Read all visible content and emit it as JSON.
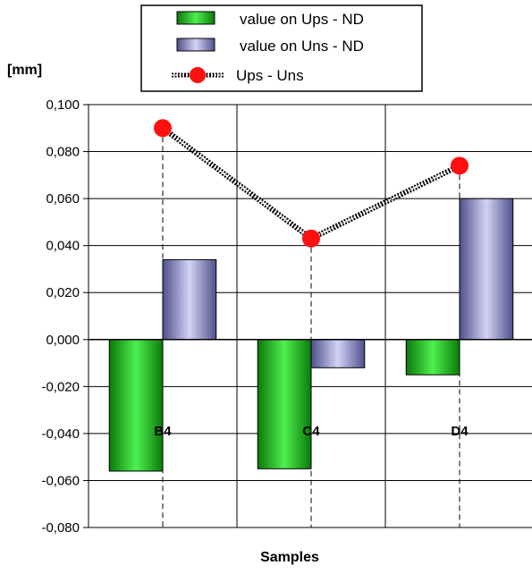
{
  "chart_data": {
    "type": "bar",
    "categories": [
      "B4",
      "C4",
      "D4"
    ],
    "series": [
      {
        "name": "value on Ups - ND",
        "kind": "bar",
        "color": "#22c522",
        "values": [
          -0.056,
          -0.055,
          -0.015
        ]
      },
      {
        "name": "value on Uns - ND",
        "kind": "bar",
        "color": "#8c8cd8",
        "values": [
          0.034,
          -0.012,
          0.06
        ]
      },
      {
        "name": "Ups - Uns",
        "kind": "line",
        "color": "#ff1010",
        "values": [
          0.09,
          0.043,
          0.074
        ]
      }
    ],
    "ylabel": "[mm]",
    "xlabel": "Samples",
    "ylim": [
      -0.08,
      0.1
    ],
    "yticks": [
      "-0,080",
      "-0,060",
      "-0,040",
      "-0,020",
      "0,000",
      "0,020",
      "0,040",
      "0,060",
      "0,080",
      "0,100"
    ],
    "grid": true,
    "legend_position": "top"
  }
}
